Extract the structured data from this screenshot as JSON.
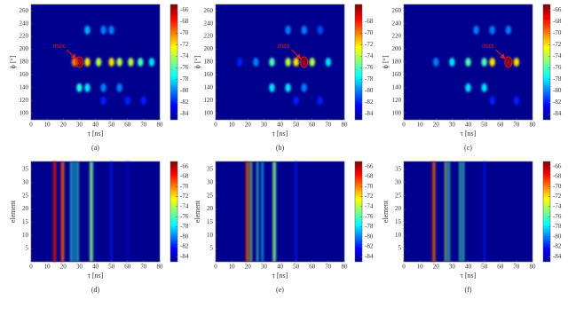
{
  "chart_data": [
    {
      "type": "spots",
      "caption": "(a)",
      "xlabel": "τ [ns]",
      "ylabel": "ϕ [°]",
      "xlim": [
        0,
        80
      ],
      "ylim": [
        90,
        270
      ],
      "xticks": [
        0,
        10,
        20,
        30,
        40,
        50,
        60,
        70,
        80
      ],
      "yticks": [
        100,
        120,
        140,
        160,
        180,
        200,
        220,
        240,
        260
      ],
      "clim": [
        -85,
        -65
      ],
      "cticks": [
        -66,
        -68,
        -70,
        -72,
        -74,
        -76,
        -78,
        -80,
        -82,
        -84
      ],
      "annotation": "max",
      "max_x": 30,
      "max_y": 180,
      "x": [
        27,
        30,
        35,
        42,
        50,
        55,
        62,
        68,
        75,
        30,
        35,
        45,
        55,
        35,
        45,
        50,
        45,
        60,
        70
      ],
      "y": [
        180,
        180,
        180,
        180,
        180,
        180,
        180,
        180,
        180,
        140,
        140,
        140,
        140,
        230,
        230,
        230,
        120,
        120,
        120
      ],
      "values": [
        -70,
        -66,
        -72,
        -74,
        -72,
        -74,
        -74,
        -76,
        -78,
        -77,
        -78,
        -80,
        -80,
        -79,
        -80,
        -80,
        -82,
        -82,
        -82
      ]
    },
    {
      "type": "spots",
      "caption": "(b)",
      "xlabel": "τ [ns]",
      "ylabel": "ϕ [°]",
      "xlim": [
        0,
        80
      ],
      "ylim": [
        90,
        270
      ],
      "xticks": [
        0,
        10,
        20,
        30,
        40,
        50,
        60,
        70,
        80
      ],
      "yticks": [
        100,
        120,
        140,
        160,
        180,
        200,
        220,
        240,
        260
      ],
      "clim": [
        -85,
        -65
      ],
      "cticks": [
        -68,
        -70,
        -72,
        -74,
        -76,
        -78,
        -80,
        -82,
        -84
      ],
      "annotation": "max",
      "max_x": 55,
      "max_y": 180,
      "x": [
        15,
        25,
        35,
        45,
        50,
        55,
        60,
        70,
        35,
        45,
        55,
        45,
        55,
        65,
        50,
        65
      ],
      "y": [
        180,
        180,
        180,
        180,
        180,
        180,
        180,
        180,
        140,
        140,
        140,
        230,
        230,
        230,
        120,
        120
      ],
      "values": [
        -82,
        -80,
        -76,
        -74,
        -72,
        -66,
        -74,
        -78,
        -78,
        -78,
        -80,
        -80,
        -80,
        -81,
        -82,
        -82
      ]
    },
    {
      "type": "spots",
      "caption": "(c)",
      "xlabel": "τ [ns]",
      "ylabel": "ϕ [°]",
      "xlim": [
        0,
        80
      ],
      "ylim": [
        90,
        270
      ],
      "xticks": [
        0,
        10,
        20,
        30,
        40,
        50,
        60,
        70,
        80
      ],
      "yticks": [
        100,
        120,
        140,
        160,
        180,
        200,
        220,
        240,
        260
      ],
      "clim": [
        -85,
        -65
      ],
      "cticks": [
        -66,
        -68,
        -70,
        -72,
        -74,
        -76,
        -78,
        -80,
        -82,
        -84
      ],
      "annotation": "max",
      "max_x": 65,
      "max_y": 180,
      "x": [
        20,
        30,
        40,
        50,
        55,
        65,
        70,
        40,
        50,
        45,
        55,
        65,
        55,
        70
      ],
      "y": [
        180,
        180,
        180,
        180,
        180,
        180,
        180,
        140,
        140,
        230,
        230,
        230,
        120,
        120
      ],
      "values": [
        -80,
        -78,
        -76,
        -76,
        -72,
        -66,
        -72,
        -78,
        -78,
        -80,
        -80,
        -80,
        -82,
        -82
      ]
    },
    {
      "type": "stripes",
      "caption": "(d)",
      "xlabel": "τ [ns]",
      "ylabel": "element",
      "xlim": [
        0,
        80
      ],
      "ylim": [
        0,
        38
      ],
      "xticks": [
        0,
        10,
        20,
        30,
        40,
        50,
        60,
        70,
        80
      ],
      "yticks": [
        5,
        10,
        15,
        20,
        25,
        30,
        35
      ],
      "clim": [
        -85,
        -65
      ],
      "cticks": [
        -66,
        -68,
        -70,
        -72,
        -74,
        -76,
        -78,
        -80,
        -82,
        -84
      ],
      "x": [
        14,
        15,
        19,
        20,
        25,
        27,
        29,
        37,
        38,
        50,
        60
      ],
      "values": [
        -66,
        -68,
        -68,
        -70,
        -76,
        -78,
        -76,
        -74,
        -76,
        -82,
        -83
      ]
    },
    {
      "type": "stripes",
      "caption": "(e)",
      "xlabel": "τ [ns]",
      "ylabel": "element",
      "xlim": [
        0,
        80
      ],
      "ylim": [
        0,
        38
      ],
      "xticks": [
        0,
        10,
        20,
        30,
        40,
        50,
        60,
        70,
        80
      ],
      "yticks": [
        5,
        10,
        15,
        20,
        25,
        30,
        35
      ],
      "clim": [
        -85,
        -65
      ],
      "cticks": [
        -66,
        -68,
        -70,
        -72,
        -74,
        -76,
        -78,
        -80,
        -82,
        -84
      ],
      "x": [
        19,
        20,
        22,
        26,
        29,
        36,
        37,
        50
      ],
      "values": [
        -66,
        -70,
        -74,
        -76,
        -78,
        -74,
        -76,
        -82
      ]
    },
    {
      "type": "stripes",
      "caption": "(f)",
      "xlabel": "τ [ns]",
      "ylabel": "element",
      "xlim": [
        0,
        80
      ],
      "ylim": [
        0,
        38
      ],
      "xticks": [
        0,
        10,
        20,
        30,
        40,
        50,
        60,
        70,
        80
      ],
      "yticks": [
        5,
        10,
        15,
        20,
        25,
        30,
        35
      ],
      "clim": [
        -85,
        -65
      ],
      "cticks": [
        -66,
        -68,
        -70,
        -72,
        -74,
        -76,
        -78,
        -80,
        -82,
        -84
      ],
      "x": [
        18,
        19,
        26,
        28,
        35,
        37,
        50
      ],
      "values": [
        -66,
        -70,
        -74,
        -76,
        -76,
        -76,
        -82
      ]
    }
  ]
}
